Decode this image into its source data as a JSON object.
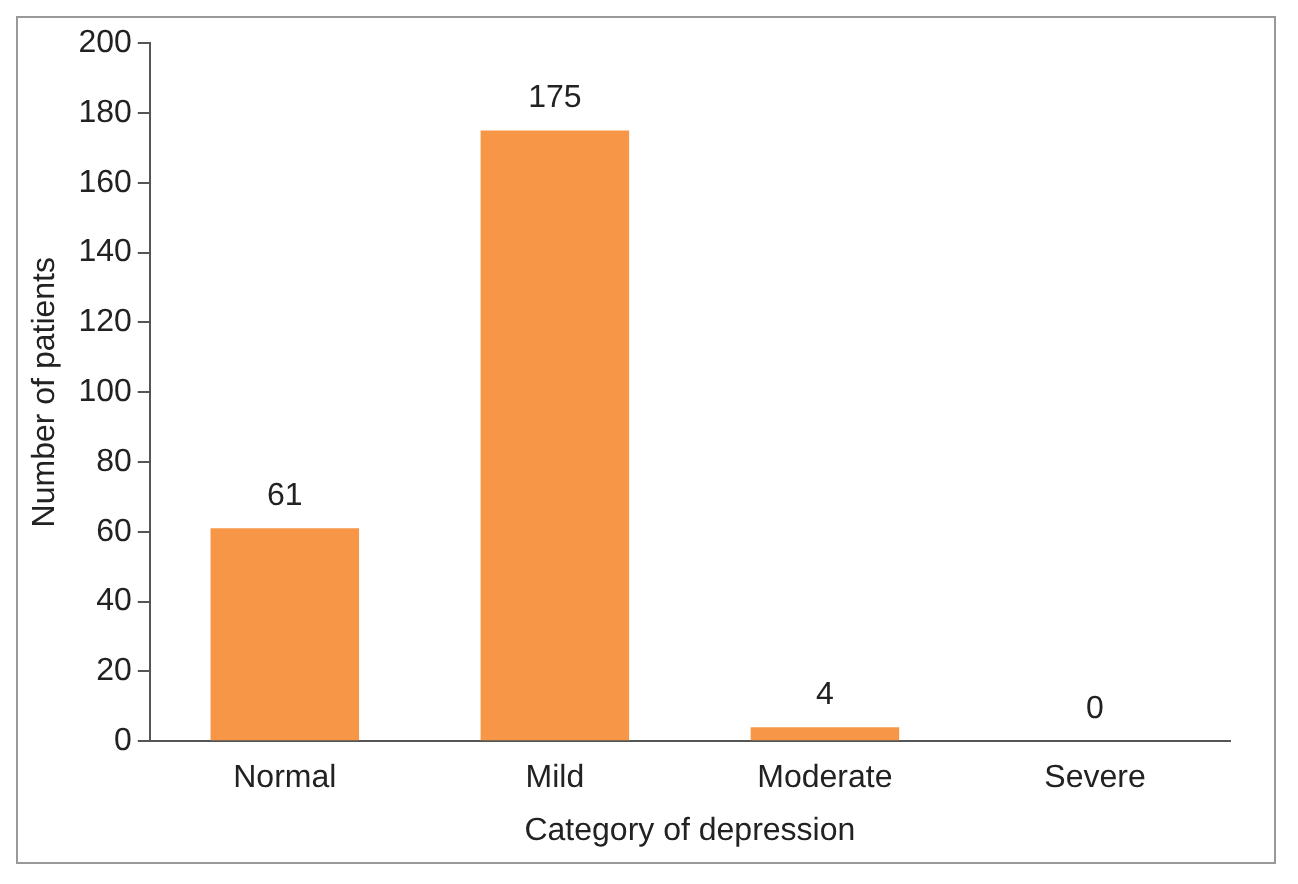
{
  "chart_data": {
    "type": "bar",
    "xlabel": "Category of depression",
    "ylabel": "Number of patients",
    "categories": [
      "Normal",
      "Mild",
      "Moderate",
      "Severe"
    ],
    "values": [
      61,
      175,
      4,
      0
    ],
    "color": "#f79646",
    "ylim": [
      0,
      200
    ],
    "yticks": [
      0,
      20,
      40,
      60,
      80,
      100,
      120,
      140,
      160,
      180,
      200
    ],
    "grid": false,
    "legend": false,
    "data_labels": true
  }
}
